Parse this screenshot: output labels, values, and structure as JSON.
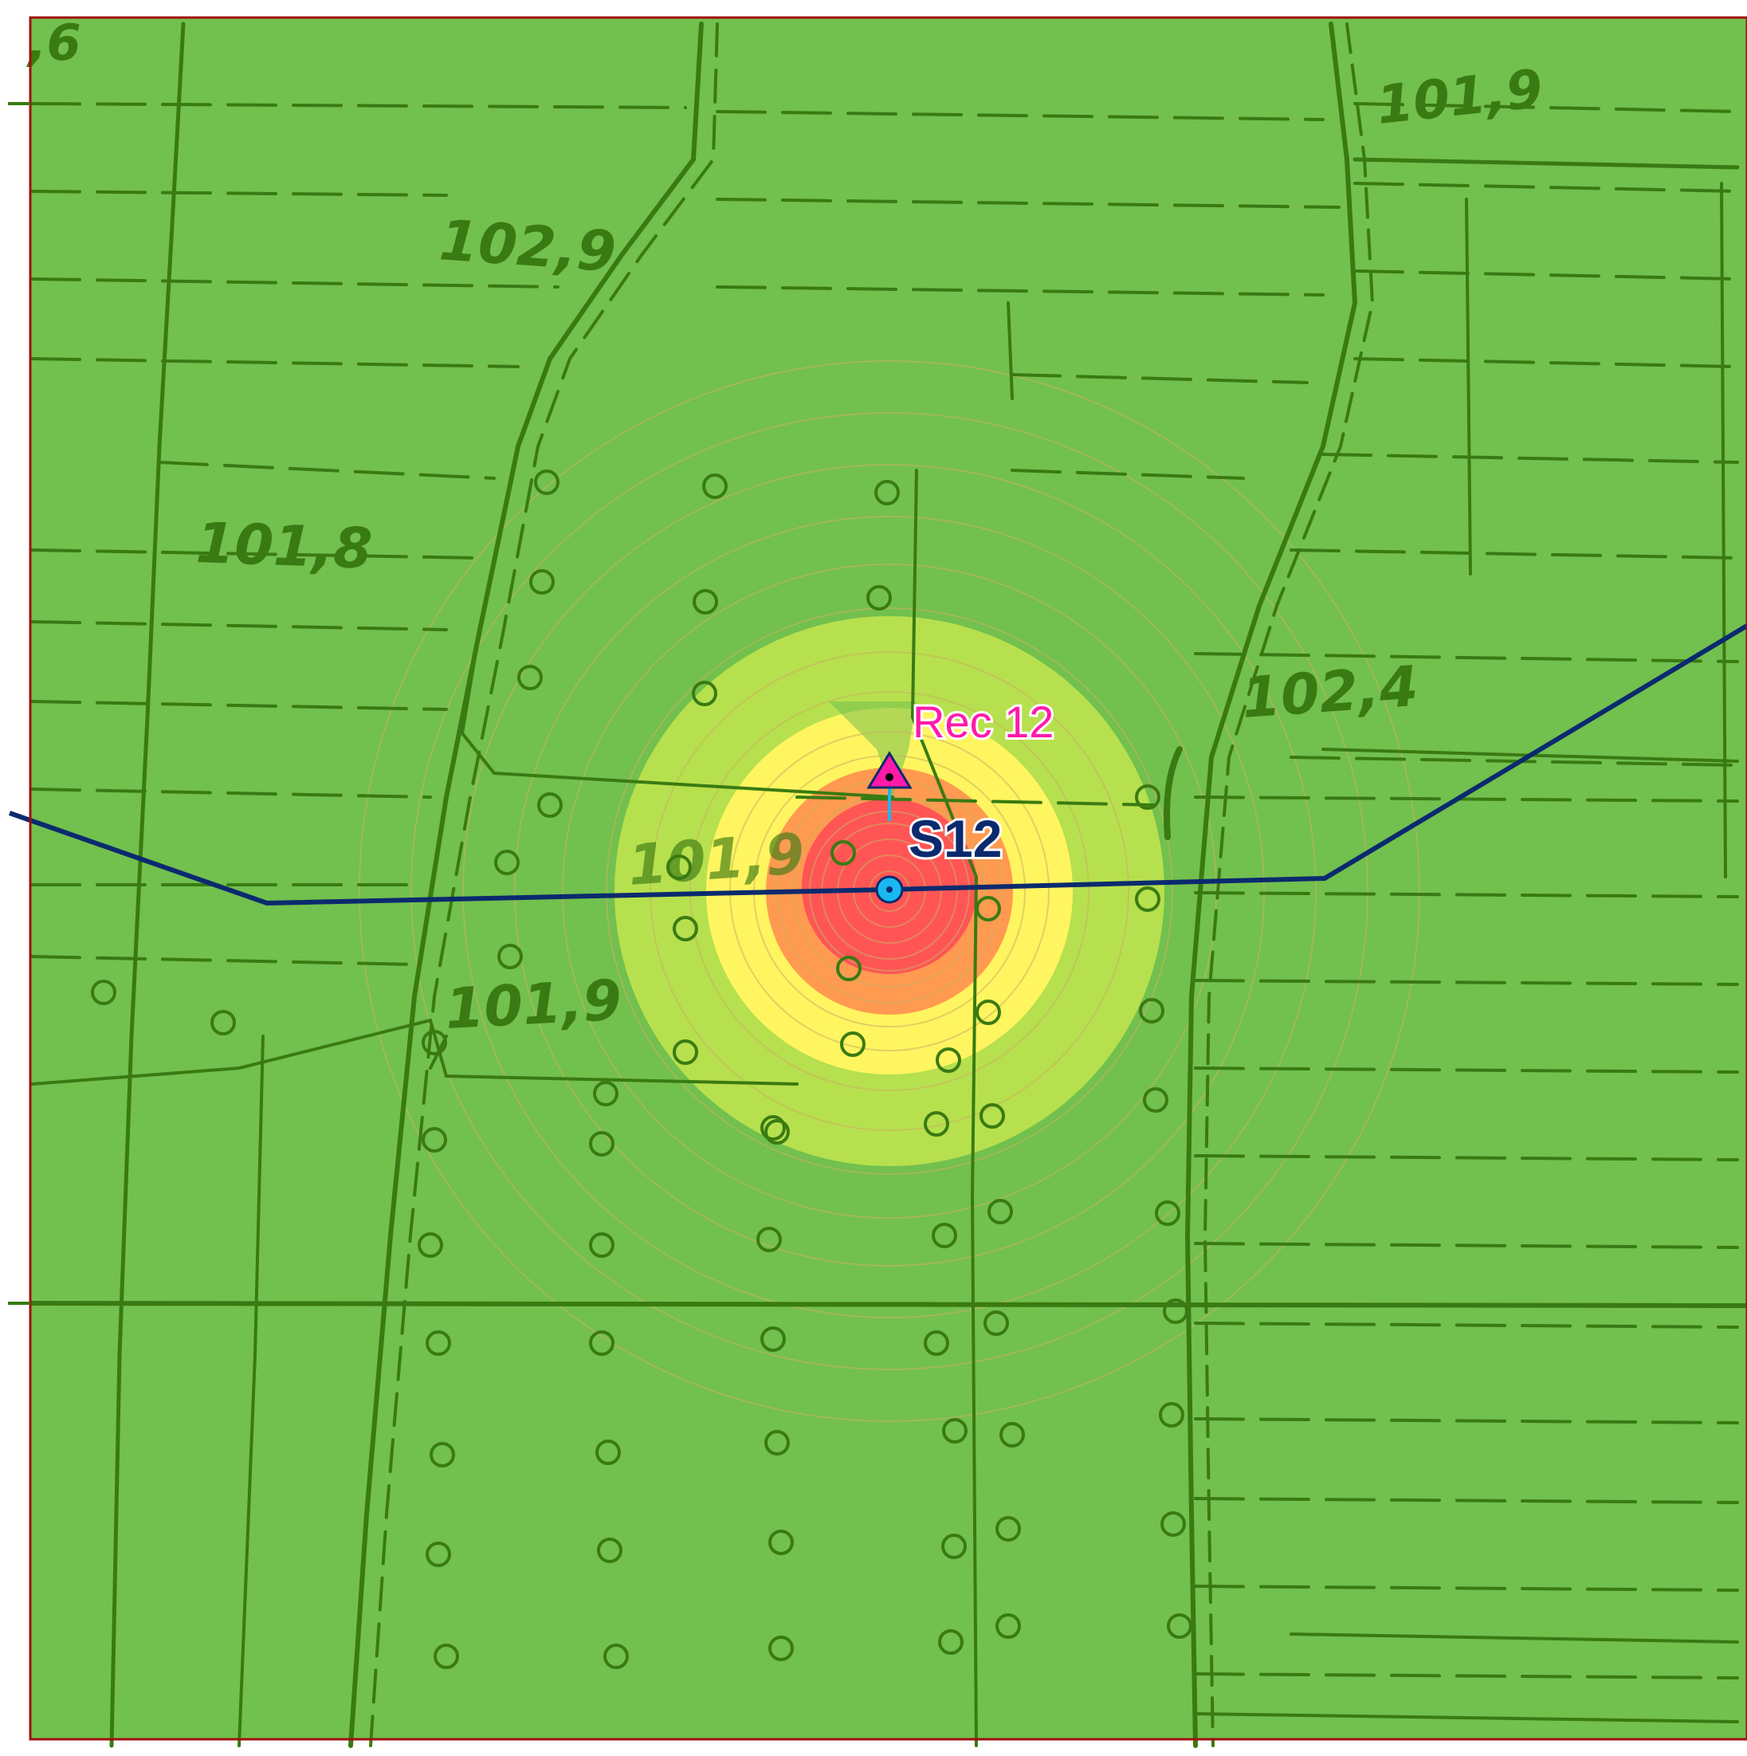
{
  "map": {
    "background_color": "#72c04e",
    "linework_color": "#3a7a12",
    "frame_color": "#a01010",
    "route_color": "#0b2a6e",
    "zone_colors": {
      "outer": "#b7e04e",
      "middle": "#fff560",
      "inner": "#ff9a50",
      "core": "#ff5555"
    }
  },
  "elevations": [
    {
      "id": "e1",
      "text": "101,9"
    },
    {
      "id": "e2",
      "text": "102,9"
    },
    {
      "id": "e3",
      "text": "101,8"
    },
    {
      "id": "e4",
      "text": "102,4"
    },
    {
      "id": "e5",
      "text": "101,9"
    },
    {
      "id": "e6",
      "text": "101,9"
    },
    {
      "id": "e7",
      "text": ",6"
    }
  ],
  "receptor": {
    "label": "Rec 12",
    "color": "#ff1aa8",
    "icon": "triangle-receptor-icon"
  },
  "source": {
    "label": "S12",
    "color": "#1ab8f0",
    "label_color": "#0b2a6e",
    "icon": "source-point-icon"
  }
}
